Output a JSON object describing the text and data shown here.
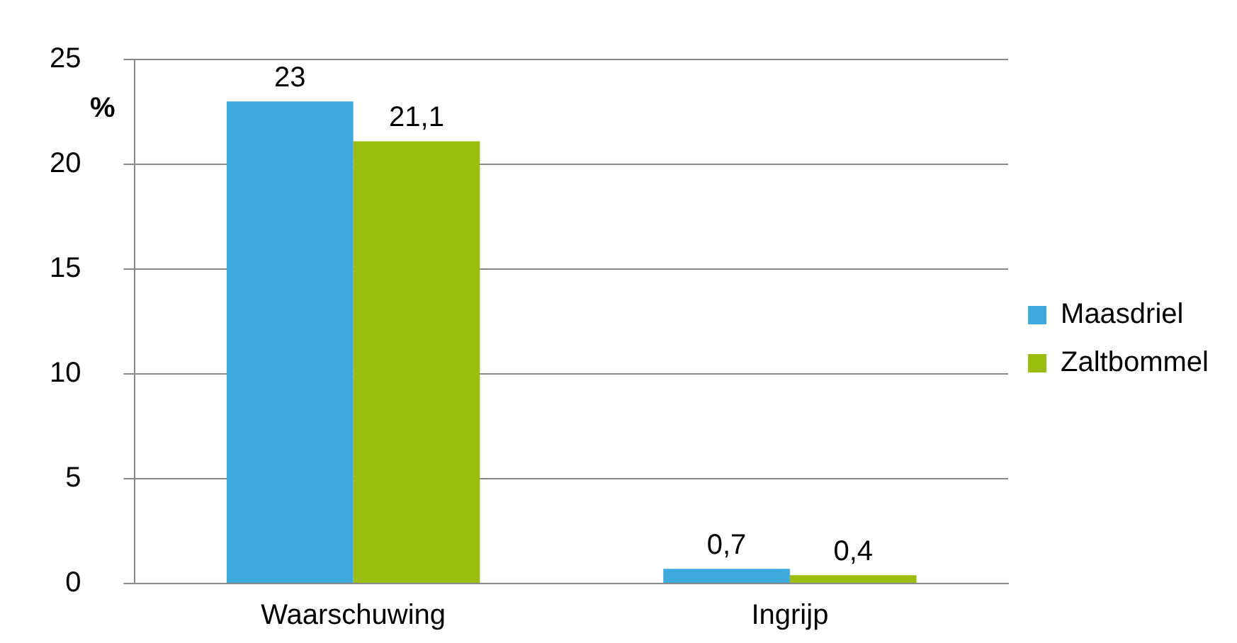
{
  "chart_data": {
    "type": "bar",
    "ylabel": "%",
    "categories": [
      "Waarschuwing",
      "Ingrijp"
    ],
    "series": [
      {
        "name": "Maasdriel",
        "color": "#3eaadc",
        "values": [
          23,
          0.7
        ],
        "value_labels": [
          "23",
          "0,7"
        ]
      },
      {
        "name": "Zaltbommel",
        "color": "#9bbd0f",
        "values": [
          21.1,
          0.4
        ],
        "value_labels": [
          "21,1",
          "0,4"
        ]
      }
    ],
    "ylim": [
      0,
      25
    ],
    "yticks": [
      0,
      5,
      10,
      15,
      20,
      25
    ],
    "grid": "y",
    "legend": "right"
  }
}
